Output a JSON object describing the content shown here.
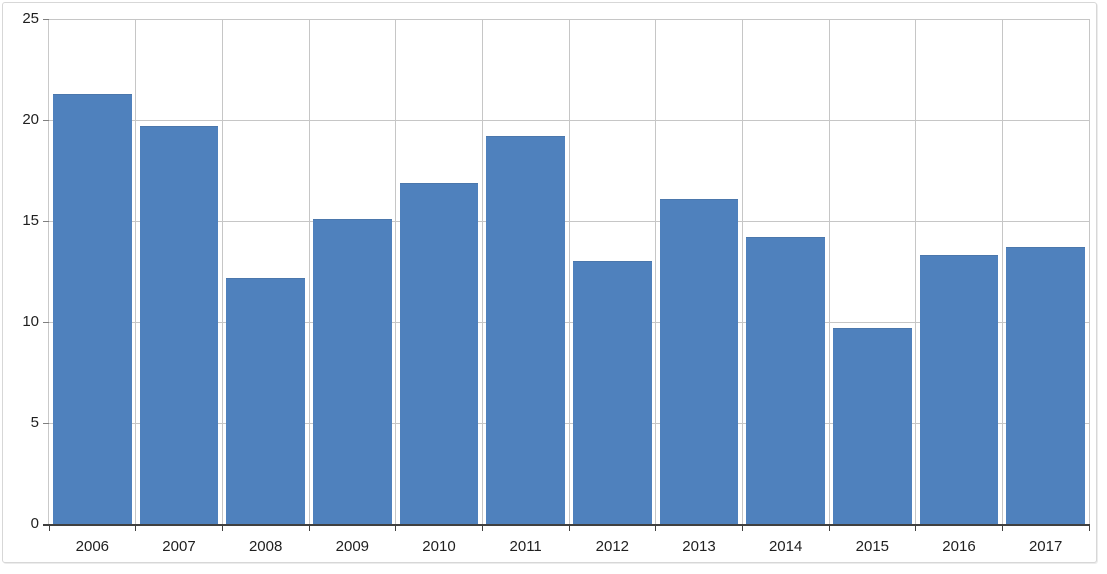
{
  "chart_data": {
    "type": "bar",
    "title": "",
    "xlabel": "",
    "ylabel": "",
    "categories": [
      "2006",
      "2007",
      "2008",
      "2009",
      "2010",
      "2011",
      "2012",
      "2013",
      "2014",
      "2015",
      "2016",
      "2017"
    ],
    "values": [
      21.3,
      19.7,
      12.2,
      15.1,
      16.9,
      19.2,
      13.0,
      16.1,
      14.2,
      9.7,
      13.3,
      13.7
    ],
    "ylim": [
      0,
      25
    ],
    "yticks": [
      0,
      5,
      10,
      15,
      20,
      25
    ],
    "ytick_labels": [
      "0",
      "5",
      "10",
      "15",
      "20",
      "25"
    ],
    "grid": true,
    "legend": "none",
    "colors": {
      "bar_fill": "#4f81bd",
      "gridline": "#c6c6c6",
      "x_axis_line": "#404040",
      "y_axis_line": "#c9c9c9",
      "y_tick": "#7f7f7f",
      "x_tick": "#404040",
      "label_text": "#1f1f1f",
      "frame_border": "#d7d7d7",
      "background": "#ffffff"
    }
  }
}
